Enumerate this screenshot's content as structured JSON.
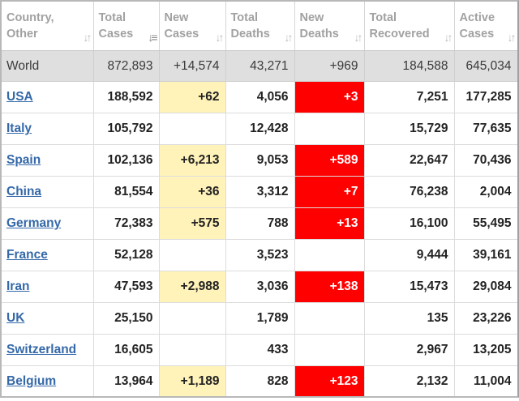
{
  "headers": [
    {
      "line1": "Country,",
      "line2": "Other",
      "sort_active": false
    },
    {
      "line1": "Total",
      "line2": "Cases",
      "sort_active": true
    },
    {
      "line1": "New",
      "line2": "Cases",
      "sort_active": false
    },
    {
      "line1": "Total",
      "line2": "Deaths",
      "sort_active": false
    },
    {
      "line1": "New",
      "line2": "Deaths",
      "sort_active": false
    },
    {
      "line1": "Total",
      "line2": "Recovered",
      "sort_active": false
    },
    {
      "line1": "Active",
      "line2": "Cases",
      "sort_active": false
    }
  ],
  "icons": {
    "sort": "sort-arrows-icon",
    "sort_active": "sort-descending-icon"
  },
  "colors": {
    "new_cases_bg": "#fff3b9",
    "new_deaths_bg": "#ff0000",
    "link": "#3468a8",
    "world_row_bg": "#dfdfdf"
  },
  "world": {
    "name": "World",
    "total_cases": "872,893",
    "new_cases": "+14,574",
    "total_deaths": "43,271",
    "new_deaths": "+969",
    "total_recovered": "184,588",
    "active_cases": "645,034"
  },
  "rows": [
    {
      "country": "USA",
      "total_cases": "188,592",
      "new_cases": "+62",
      "total_deaths": "4,056",
      "new_deaths": "+3",
      "total_recovered": "7,251",
      "active_cases": "177,285"
    },
    {
      "country": "Italy",
      "total_cases": "105,792",
      "new_cases": "",
      "total_deaths": "12,428",
      "new_deaths": "",
      "total_recovered": "15,729",
      "active_cases": "77,635"
    },
    {
      "country": "Spain",
      "total_cases": "102,136",
      "new_cases": "+6,213",
      "total_deaths": "9,053",
      "new_deaths": "+589",
      "total_recovered": "22,647",
      "active_cases": "70,436"
    },
    {
      "country": "China",
      "total_cases": "81,554",
      "new_cases": "+36",
      "total_deaths": "3,312",
      "new_deaths": "+7",
      "total_recovered": "76,238",
      "active_cases": "2,004"
    },
    {
      "country": "Germany",
      "total_cases": "72,383",
      "new_cases": "+575",
      "total_deaths": "788",
      "new_deaths": "+13",
      "total_recovered": "16,100",
      "active_cases": "55,495"
    },
    {
      "country": "France",
      "total_cases": "52,128",
      "new_cases": "",
      "total_deaths": "3,523",
      "new_deaths": "",
      "total_recovered": "9,444",
      "active_cases": "39,161"
    },
    {
      "country": "Iran",
      "total_cases": "47,593",
      "new_cases": "+2,988",
      "total_deaths": "3,036",
      "new_deaths": "+138",
      "total_recovered": "15,473",
      "active_cases": "29,084"
    },
    {
      "country": "UK",
      "total_cases": "25,150",
      "new_cases": "",
      "total_deaths": "1,789",
      "new_deaths": "",
      "total_recovered": "135",
      "active_cases": "23,226"
    },
    {
      "country": "Switzerland",
      "total_cases": "16,605",
      "new_cases": "",
      "total_deaths": "433",
      "new_deaths": "",
      "total_recovered": "2,967",
      "active_cases": "13,205"
    },
    {
      "country": "Belgium",
      "total_cases": "13,964",
      "new_cases": "+1,189",
      "total_deaths": "828",
      "new_deaths": "+123",
      "total_recovered": "2,132",
      "active_cases": "11,004"
    }
  ]
}
